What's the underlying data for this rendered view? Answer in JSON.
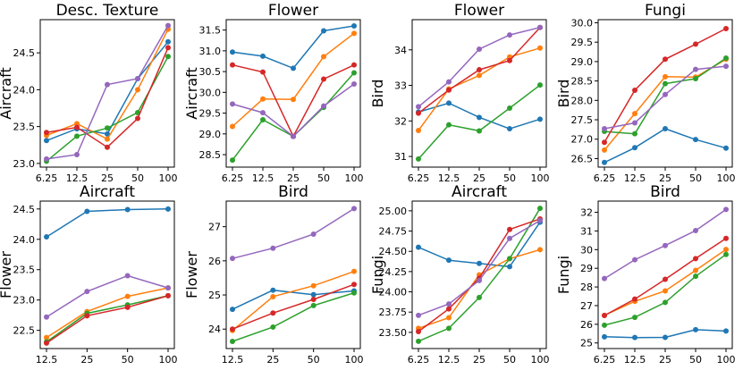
{
  "series_colors": [
    "#1f77b4",
    "#ff7f0e",
    "#2ca02c",
    "#d62728",
    "#9467bd"
  ],
  "chart_data": [
    {
      "type": "line",
      "title": "Desc. Texture",
      "ylabel": "Aircraft",
      "categories": [
        "6.25",
        "12.5",
        "25",
        "50",
        "100"
      ],
      "yticks": [
        "23.0",
        "23.5",
        "24.0",
        "24.5"
      ],
      "ylim": [
        22.95,
        24.95
      ],
      "series": [
        {
          "values": [
            23.31,
            23.47,
            23.4,
            24.15,
            24.65
          ]
        },
        {
          "values": [
            23.38,
            23.54,
            23.33,
            24.0,
            24.82
          ]
        },
        {
          "values": [
            23.03,
            23.37,
            23.48,
            23.69,
            24.45
          ]
        },
        {
          "values": [
            23.42,
            23.49,
            23.22,
            23.61,
            24.57
          ]
        },
        {
          "values": [
            23.06,
            23.12,
            24.07,
            24.15,
            24.87
          ]
        }
      ]
    },
    {
      "type": "line",
      "title": "Flower",
      "ylabel": "Aircraft",
      "categories": [
        "6.25",
        "12.5",
        "25",
        "50",
        "100"
      ],
      "yticks": [
        "28.5",
        "29.0",
        "29.5",
        "30.0",
        "30.5",
        "31.0",
        "31.5"
      ],
      "ylim": [
        28.2,
        31.75
      ],
      "series": [
        {
          "values": [
            30.97,
            30.87,
            30.58,
            31.48,
            31.6
          ]
        },
        {
          "values": [
            29.18,
            29.84,
            29.83,
            30.86,
            31.42
          ]
        },
        {
          "values": [
            28.37,
            29.34,
            28.94,
            29.64,
            30.47
          ]
        },
        {
          "values": [
            30.66,
            30.49,
            28.94,
            30.32,
            30.66
          ]
        },
        {
          "values": [
            29.72,
            29.51,
            28.94,
            29.67,
            30.2
          ]
        }
      ]
    },
    {
      "type": "line",
      "title": "Flower",
      "ylabel": "Bird",
      "categories": [
        "6.25",
        "12.5",
        "25",
        "50",
        "100"
      ],
      "yticks": [
        "31",
        "32",
        "33",
        "34"
      ],
      "ylim": [
        30.7,
        34.85
      ],
      "series": [
        {
          "values": [
            32.25,
            32.5,
            32.1,
            31.78,
            32.05
          ]
        },
        {
          "values": [
            31.73,
            32.9,
            33.28,
            33.8,
            34.05
          ]
        },
        {
          "values": [
            30.93,
            31.89,
            31.72,
            32.36,
            33.01
          ]
        },
        {
          "values": [
            32.22,
            32.87,
            33.44,
            33.7,
            34.63
          ]
        },
        {
          "values": [
            32.4,
            33.1,
            34.02,
            34.42,
            34.63
          ]
        }
      ]
    },
    {
      "type": "line",
      "title": "Fungi",
      "ylabel": "Bird",
      "categories": [
        "6.25",
        "12.5",
        "25",
        "50",
        "100"
      ],
      "yticks": [
        "26.5",
        "27.0",
        "27.5",
        "28.0",
        "28.5",
        "29.0",
        "29.5",
        "30.0"
      ],
      "ylim": [
        26.28,
        30.08
      ],
      "series": [
        {
          "values": [
            26.4,
            26.78,
            27.27,
            26.99,
            26.77
          ]
        },
        {
          "values": [
            26.72,
            27.66,
            28.61,
            28.6,
            29.06
          ]
        },
        {
          "values": [
            27.2,
            27.14,
            28.43,
            28.56,
            29.09
          ]
        },
        {
          "values": [
            26.92,
            28.26,
            29.06,
            29.45,
            29.85
          ]
        },
        {
          "values": [
            27.27,
            27.42,
            28.15,
            28.8,
            28.88
          ]
        }
      ]
    },
    {
      "type": "line",
      "title": "Aircraft",
      "ylabel": "Flower",
      "categories": [
        "12.5",
        "25",
        "50",
        "100"
      ],
      "yticks": [
        "22.5",
        "23.0",
        "23.5",
        "24.0",
        "24.5"
      ],
      "ylim": [
        22.2,
        24.63
      ],
      "series": [
        {
          "values": [
            24.04,
            24.46,
            24.49,
            24.5
          ]
        },
        {
          "values": [
            22.38,
            22.81,
            23.06,
            23.2
          ]
        },
        {
          "values": [
            22.31,
            22.78,
            22.92,
            23.07
          ]
        },
        {
          "values": [
            22.29,
            22.74,
            22.88,
            23.07
          ]
        },
        {
          "values": [
            22.72,
            23.14,
            23.4,
            23.2
          ]
        }
      ]
    },
    {
      "type": "line",
      "title": "Bird",
      "ylabel": "Flower",
      "categories": [
        "12.5",
        "25",
        "50",
        "100"
      ],
      "yticks": [
        "24",
        "25",
        "26",
        "27"
      ],
      "ylim": [
        23.43,
        27.75
      ],
      "series": [
        {
          "values": [
            24.58,
            25.14,
            25.01,
            25.12
          ]
        },
        {
          "values": [
            23.96,
            24.95,
            25.27,
            25.69
          ]
        },
        {
          "values": [
            23.64,
            24.06,
            24.69,
            25.06
          ]
        },
        {
          "values": [
            24.0,
            24.47,
            24.87,
            25.31
          ]
        },
        {
          "values": [
            26.07,
            26.37,
            26.78,
            27.53
          ]
        }
      ]
    },
    {
      "type": "line",
      "title": "Aircraft",
      "ylabel": "Fungi",
      "categories": [
        "6.25",
        "12.5",
        "25",
        "50",
        "100"
      ],
      "yticks": [
        "23.50",
        "23.75",
        "24.00",
        "24.25",
        "24.50",
        "24.75",
        "25.00"
      ],
      "ylim": [
        23.3,
        25.12
      ],
      "series": [
        {
          "values": [
            24.55,
            24.39,
            24.35,
            24.31,
            24.86
          ]
        },
        {
          "values": [
            23.55,
            23.68,
            24.21,
            24.41,
            24.52
          ]
        },
        {
          "values": [
            23.39,
            23.55,
            23.93,
            24.41,
            25.03
          ]
        },
        {
          "values": [
            23.51,
            23.79,
            24.17,
            24.77,
            24.9
          ]
        },
        {
          "values": [
            23.71,
            23.85,
            24.14,
            24.66,
            24.88
          ]
        }
      ]
    },
    {
      "type": "line",
      "title": "Bird",
      "ylabel": "Fungi",
      "categories": [
        "6.25",
        "12.5",
        "25",
        "50",
        "100"
      ],
      "yticks": [
        "25",
        "26",
        "27",
        "28",
        "29",
        "30",
        "31",
        "32"
      ],
      "ylim": [
        24.7,
        32.6
      ],
      "series": [
        {
          "values": [
            25.33,
            25.29,
            25.3,
            25.71,
            25.64
          ]
        },
        {
          "values": [
            26.48,
            27.23,
            27.79,
            28.89,
            30.01
          ]
        },
        {
          "values": [
            25.95,
            26.37,
            27.17,
            28.57,
            29.74
          ]
        },
        {
          "values": [
            26.47,
            27.35,
            28.41,
            29.52,
            30.6
          ]
        },
        {
          "values": [
            28.45,
            29.46,
            30.22,
            31.02,
            32.15
          ]
        }
      ]
    }
  ]
}
